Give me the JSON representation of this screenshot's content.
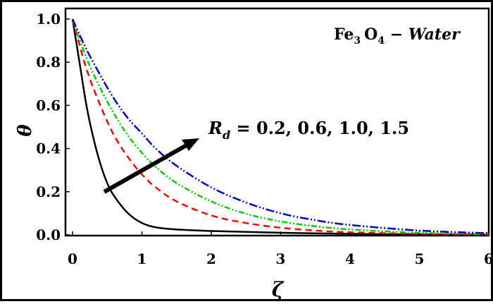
{
  "chart_data": {
    "type": "line",
    "ylabel": "θ",
    "xlabel": "ζ",
    "xlim": [
      0,
      6
    ],
    "ylim": [
      0,
      1
    ],
    "x_ticks": [
      "0",
      "1",
      "2",
      "3",
      "4",
      "5",
      "6"
    ],
    "y_ticks": [
      "0.0",
      "0.2",
      "0.4",
      "0.6",
      "0.8",
      "1.0"
    ],
    "grid": false,
    "annotations": {
      "fluid": {
        "species_1": "Fe",
        "sub_1": "3",
        "species_2": "O",
        "sub_2": "4",
        "dash": " − ",
        "medium": "Water"
      },
      "parameter": {
        "symbol": "R",
        "subscript": "d",
        "values": " = 0.2, 0.6, 1.0, 1.5"
      },
      "arrow_direction": "increasing R_d"
    },
    "series": [
      {
        "param": 0.2,
        "color": "#000000",
        "dash": "solid",
        "x": [
          0,
          0.1,
          0.2,
          0.3,
          0.4,
          0.5,
          0.6,
          0.8,
          1.0,
          1.2,
          1.5,
          2.0,
          3.0,
          4.0,
          5.0,
          6.0
        ],
        "y": [
          1.0,
          0.8,
          0.6,
          0.45,
          0.33,
          0.24,
          0.18,
          0.1,
          0.055,
          0.035,
          0.025,
          0.018,
          0.01,
          0.005,
          0.002,
          0.001
        ]
      },
      {
        "param": 0.6,
        "color": "#ff0000",
        "dash": "dashed",
        "x": [
          0,
          0.2,
          0.4,
          0.6,
          0.8,
          1.0,
          1.2,
          1.5,
          2.0,
          2.5,
          3.0,
          3.5,
          4.0,
          5.0,
          6.0
        ],
        "y": [
          1.0,
          0.77,
          0.6,
          0.46,
          0.36,
          0.28,
          0.22,
          0.155,
          0.09,
          0.055,
          0.033,
          0.02,
          0.012,
          0.005,
          0.002
        ]
      },
      {
        "param": 1.0,
        "color": "#00cc00",
        "dash": "dash-dot-dot",
        "x": [
          0,
          0.2,
          0.4,
          0.6,
          0.8,
          1.0,
          1.2,
          1.5,
          2.0,
          2.5,
          3.0,
          3.5,
          4.0,
          5.0,
          6.0
        ],
        "y": [
          1.0,
          0.82,
          0.68,
          0.56,
          0.46,
          0.38,
          0.315,
          0.24,
          0.155,
          0.098,
          0.062,
          0.04,
          0.025,
          0.01,
          0.004
        ]
      },
      {
        "param": 1.5,
        "color": "#0000cc",
        "dash": "dash-dot",
        "x": [
          0,
          0.2,
          0.4,
          0.6,
          0.8,
          1.0,
          1.2,
          1.5,
          2.0,
          2.5,
          3.0,
          3.5,
          4.0,
          5.0,
          6.0
        ],
        "y": [
          1.0,
          0.86,
          0.74,
          0.63,
          0.54,
          0.47,
          0.4,
          0.32,
          0.22,
          0.15,
          0.1,
          0.068,
          0.046,
          0.02,
          0.008
        ]
      }
    ]
  }
}
